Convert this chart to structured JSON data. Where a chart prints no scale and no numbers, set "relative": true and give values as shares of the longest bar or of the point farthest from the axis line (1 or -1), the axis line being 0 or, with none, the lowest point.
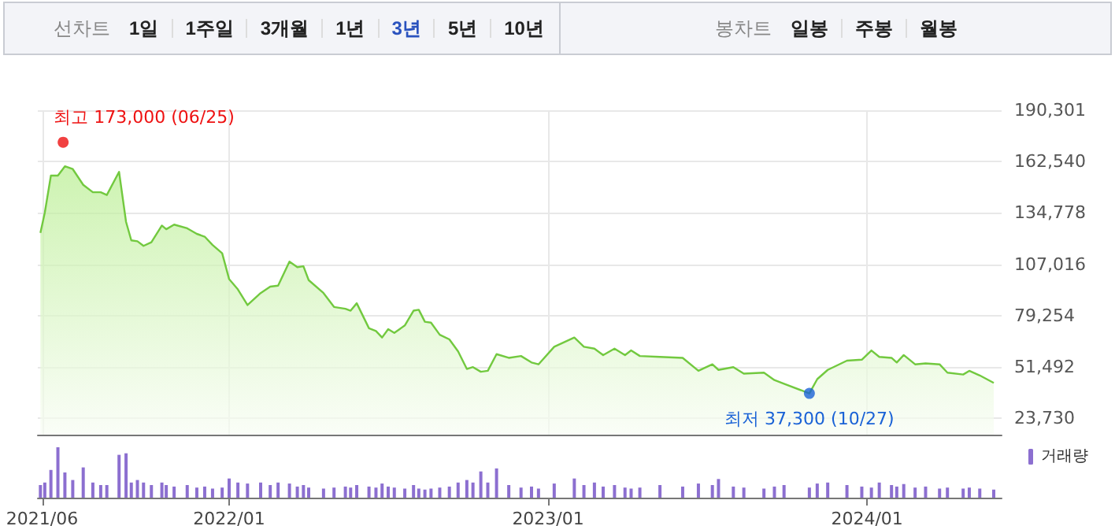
{
  "chart_data": [
    {
      "type": "other",
      "title": "선차트",
      "annotations": [
        "1일",
        "1주일",
        "3개월",
        "1년",
        "3년",
        "5년",
        "10년"
      ],
      "colors": [
        "#222222",
        "#222222",
        "#222222",
        "#222222",
        "#2a52be",
        "#222222",
        "#222222"
      ]
    },
    {
      "type": "other",
      "title": "봉차트",
      "annotations": [
        "일봉",
        "주봉",
        "월봉"
      ],
      "colors": [
        "#222222",
        "#222222",
        "#222222"
      ]
    },
    {
      "type": "area",
      "x": [
        "2021-05-30",
        "2021-06-04",
        "2021-06-11",
        "2021-06-19",
        "2021-06-27",
        "2021-07-06",
        "2021-07-18",
        "2021-07-29",
        "2021-08-07",
        "2021-08-14",
        "2021-08-28",
        "2021-09-05",
        "2021-09-11",
        "2021-09-18",
        "2021-09-25",
        "2021-10-04",
        "2021-10-16",
        "2021-10-21",
        "2021-10-30",
        "2021-11-14",
        "2021-11-25",
        "2021-12-04",
        "2021-12-13",
        "2021-12-24",
        "2022-01-01",
        "2022-01-11",
        "2022-01-22",
        "2022-02-06",
        "2022-02-17",
        "2022-02-26",
        "2022-03-11",
        "2022-03-20",
        "2022-03-27",
        "2022-04-02",
        "2022-04-19",
        "2022-05-01",
        "2022-05-14",
        "2022-05-20",
        "2022-05-27",
        "2022-06-10",
        "2022-06-18",
        "2022-06-25",
        "2022-07-02",
        "2022-07-09",
        "2022-07-21",
        "2022-07-31",
        "2022-08-06",
        "2022-08-13",
        "2022-08-20",
        "2022-08-30",
        "2022-09-10",
        "2022-09-20",
        "2022-09-30",
        "2022-10-07",
        "2022-10-16",
        "2022-10-24",
        "2022-11-03",
        "2022-11-17",
        "2022-12-01",
        "2022-12-13",
        "2022-12-21",
        "2023-01-08",
        "2023-01-31",
        "2023-02-11",
        "2023-02-23",
        "2023-03-05",
        "2023-03-18",
        "2023-03-30",
        "2023-04-06",
        "2023-04-16",
        "2023-05-09",
        "2023-06-04",
        "2023-06-22",
        "2023-07-08",
        "2023-07-15",
        "2023-08-01",
        "2023-08-13",
        "2023-09-05",
        "2023-09-17",
        "2023-09-28",
        "2023-10-27",
        "2023-11-05",
        "2023-11-17",
        "2023-12-09",
        "2023-12-26",
        "2024-01-06",
        "2024-01-15",
        "2024-01-29",
        "2024-02-04",
        "2024-02-12",
        "2024-02-25",
        "2024-03-08",
        "2024-03-24",
        "2024-04-02",
        "2024-04-20",
        "2024-04-27",
        "2024-05-09",
        "2024-05-25"
      ],
      "series": [
        {
          "color": "#72c93f",
          "values": [
            124000,
            135000,
            155000,
            155000,
            160000,
            158500,
            150000,
            146000,
            146000,
            144500,
            157000,
            130000,
            120000,
            119500,
            117000,
            119000,
            128000,
            126000,
            128500,
            126500,
            123500,
            122000,
            117500,
            113000,
            99000,
            93500,
            85000,
            91500,
            95000,
            95500,
            108500,
            105500,
            106000,
            98500,
            91500,
            84000,
            83000,
            82000,
            86000,
            72500,
            71000,
            67500,
            72000,
            70000,
            74000,
            82000,
            82500,
            76000,
            75500,
            69000,
            66500,
            60000,
            50500,
            51500,
            49000,
            49500,
            58500,
            56500,
            57500,
            54000,
            53000,
            62500,
            67500,
            62500,
            61500,
            58000,
            61500,
            58000,
            60500,
            57500,
            57000,
            56500,
            49500,
            53000,
            50000,
            51500,
            48000,
            48500,
            44500,
            42500,
            37300,
            45000,
            50000,
            55000,
            55500,
            60500,
            57000,
            56500,
            54000,
            58000,
            53000,
            53500,
            53000,
            48500,
            47500,
            49500,
            47000,
            43000
          ]
        },
        {
          "type": "scatter",
          "x": [
            "2021-06-25",
            "2023-10-27"
          ],
          "values": [
            173000,
            37300
          ],
          "colors": [
            "#ee1111",
            "#1a62d6"
          ],
          "value_labels": [
            "최고 173,000 (06/25)",
            "최저 37,300 (10/27)"
          ]
        }
      ],
      "xlim": [
        "2021-05-27",
        "2024-06-03"
      ],
      "ylim": [
        15000,
        190301
      ],
      "yticks": [
        {
          "value": 23730,
          "label": "23,730"
        },
        {
          "value": 51492,
          "label": "51,492"
        },
        {
          "value": 79254,
          "label": "79,254"
        },
        {
          "value": 107016,
          "label": "107,016"
        },
        {
          "value": 134778,
          "label": "134,778"
        },
        {
          "value": 162540,
          "label": "162,540"
        },
        {
          "value": 190301,
          "label": "190,301"
        }
      ],
      "xticks": [
        {
          "value": "2021-06",
          "label": null
        },
        {
          "value": "2022-01",
          "label": null
        },
        {
          "value": "2023-01",
          "label": null
        },
        {
          "value": "2024-01",
          "label": null
        }
      ],
      "tick_labels": "y",
      "grid": true,
      "legend": false
    },
    {
      "type": "bar",
      "relative": true,
      "x": [
        "2021-05-30",
        "2021-06-04",
        "2021-06-11",
        "2021-06-19",
        "2021-06-27",
        "2021-07-06",
        "2021-07-18",
        "2021-07-29",
        "2021-08-07",
        "2021-08-14",
        "2021-08-28",
        "2021-09-05",
        "2021-09-11",
        "2021-09-18",
        "2021-09-25",
        "2021-10-04",
        "2021-10-16",
        "2021-10-21",
        "2021-10-30",
        "2021-11-14",
        "2021-11-25",
        "2021-12-04",
        "2021-12-13",
        "2021-12-24",
        "2022-01-01",
        "2022-01-11",
        "2022-01-22",
        "2022-02-06",
        "2022-02-17",
        "2022-02-26",
        "2022-03-11",
        "2022-03-20",
        "2022-03-27",
        "2022-04-02",
        "2022-04-19",
        "2022-05-01",
        "2022-05-14",
        "2022-05-20",
        "2022-05-27",
        "2022-06-10",
        "2022-06-18",
        "2022-06-25",
        "2022-07-02",
        "2022-07-09",
        "2022-07-21",
        "2022-07-31",
        "2022-08-06",
        "2022-08-13",
        "2022-08-20",
        "2022-08-30",
        "2022-09-10",
        "2022-09-20",
        "2022-09-30",
        "2022-10-07",
        "2022-10-16",
        "2022-10-24",
        "2022-11-03",
        "2022-11-17",
        "2022-12-01",
        "2022-12-13",
        "2022-12-21",
        "2023-01-08",
        "2023-01-31",
        "2023-02-11",
        "2023-02-23",
        "2023-03-05",
        "2023-03-18",
        "2023-03-30",
        "2023-04-06",
        "2023-04-16",
        "2023-05-09",
        "2023-06-04",
        "2023-06-22",
        "2023-07-08",
        "2023-07-15",
        "2023-08-01",
        "2023-08-13",
        "2023-09-05",
        "2023-09-17",
        "2023-09-28",
        "2023-10-27",
        "2023-11-05",
        "2023-11-17",
        "2023-12-09",
        "2023-12-26",
        "2024-01-06",
        "2024-01-15",
        "2024-01-29",
        "2024-02-04",
        "2024-02-12",
        "2024-02-25",
        "2024-03-08",
        "2024-03-24",
        "2024-04-02",
        "2024-04-20",
        "2024-04-27",
        "2024-05-09",
        "2024-05-25"
      ],
      "series": [
        {
          "name": "거래량",
          "color": "#8c6fd0",
          "values": [
            0.25,
            0.3,
            0.55,
            1.0,
            0.5,
            0.35,
            0.6,
            0.3,
            0.25,
            0.25,
            0.85,
            0.88,
            0.3,
            0.35,
            0.3,
            0.25,
            0.3,
            0.25,
            0.22,
            0.25,
            0.2,
            0.22,
            0.18,
            0.2,
            0.38,
            0.3,
            0.28,
            0.3,
            0.25,
            0.3,
            0.28,
            0.22,
            0.25,
            0.2,
            0.18,
            0.2,
            0.22,
            0.2,
            0.25,
            0.22,
            0.2,
            0.28,
            0.22,
            0.2,
            0.18,
            0.25,
            0.18,
            0.16,
            0.18,
            0.2,
            0.22,
            0.3,
            0.35,
            0.3,
            0.52,
            0.3,
            0.58,
            0.25,
            0.2,
            0.22,
            0.18,
            0.28,
            0.38,
            0.25,
            0.3,
            0.22,
            0.25,
            0.2,
            0.18,
            0.2,
            0.25,
            0.22,
            0.28,
            0.25,
            0.37,
            0.22,
            0.2,
            0.18,
            0.22,
            0.25,
            0.2,
            0.28,
            0.3,
            0.25,
            0.22,
            0.2,
            0.3,
            0.25,
            0.22,
            0.27,
            0.2,
            0.22,
            0.18,
            0.2,
            0.18,
            0.2,
            0.18,
            0.16
          ]
        }
      ],
      "xlim": [
        "2021-05-27",
        "2024-06-03"
      ],
      "xticks": [
        {
          "value": "2021-06",
          "label": "2021/06"
        },
        {
          "value": "2022-01",
          "label": "2022/01"
        },
        {
          "value": "2023-01",
          "label": "2023/01"
        },
        {
          "value": "2024-01",
          "label": "2024/01"
        }
      ],
      "tick_labels": "x",
      "grid": false,
      "legend": "top right"
    }
  ]
}
